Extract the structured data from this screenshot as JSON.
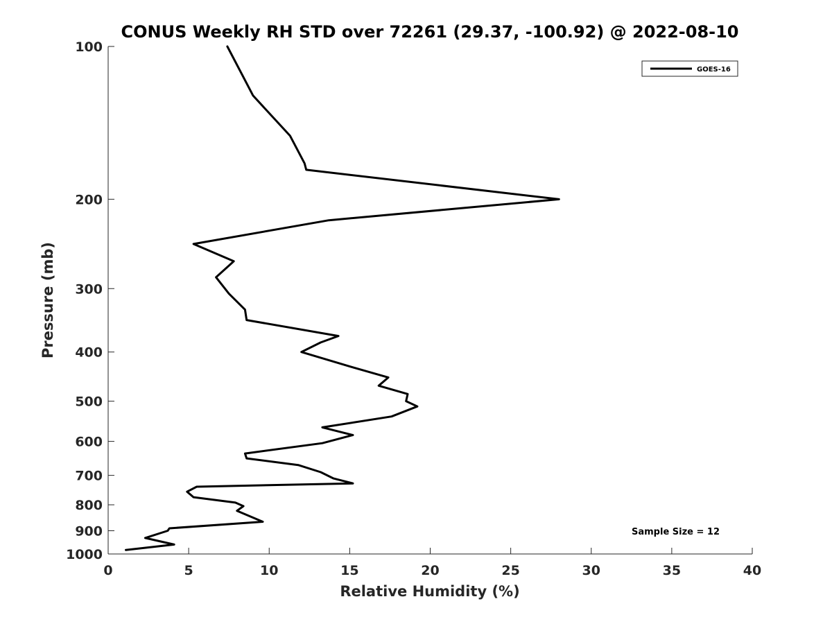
{
  "chart_data": {
    "type": "line",
    "title": "CONUS Weekly RH STD over 72261 (29.37, -100.92) @ 2022-08-10",
    "xlabel": "Relative Humidity (%)",
    "ylabel": "Pressure (mb)",
    "xlim": [
      0,
      40
    ],
    "ylim": [
      100,
      1000
    ],
    "y_scale": "log",
    "y_reversed": true,
    "x_ticks": [
      "0",
      "5",
      "10",
      "15",
      "20",
      "25",
      "30",
      "35",
      "40"
    ],
    "y_ticks": [
      "100",
      "200",
      "300",
      "400",
      "500",
      "600",
      "700",
      "800",
      "900",
      "1000"
    ],
    "grid": false,
    "legend_position": "top-right",
    "line_color": "#000000",
    "annotation": "Sample Size = 12",
    "series": [
      {
        "name": "GOES-16",
        "points": [
          [
            7.4,
            100
          ],
          [
            9.0,
            125
          ],
          [
            11.3,
            150
          ],
          [
            12.2,
            170
          ],
          [
            12.3,
            175
          ],
          [
            28.0,
            200
          ],
          [
            13.7,
            220
          ],
          [
            5.3,
            245
          ],
          [
            7.8,
            265
          ],
          [
            6.7,
            285
          ],
          [
            7.5,
            307
          ],
          [
            8.5,
            330
          ],
          [
            8.6,
            346
          ],
          [
            14.3,
            372
          ],
          [
            13.2,
            383
          ],
          [
            12.0,
            400
          ],
          [
            15.1,
            428
          ],
          [
            17.4,
            449
          ],
          [
            16.8,
            466
          ],
          [
            18.6,
            484
          ],
          [
            18.5,
            500
          ],
          [
            19.2,
            512
          ],
          [
            17.6,
            536
          ],
          [
            13.3,
            563
          ],
          [
            15.2,
            583
          ],
          [
            13.3,
            605
          ],
          [
            8.5,
            634
          ],
          [
            8.6,
            648
          ],
          [
            11.8,
            668
          ],
          [
            13.2,
            690
          ],
          [
            14.0,
            710
          ],
          [
            15.2,
            726
          ],
          [
            5.5,
            737
          ],
          [
            4.9,
            754
          ],
          [
            5.3,
            773
          ],
          [
            7.9,
            792
          ],
          [
            8.4,
            805
          ],
          [
            8.0,
            822
          ],
          [
            9.6,
            864
          ],
          [
            3.8,
            890
          ],
          [
            3.7,
            900
          ],
          [
            2.3,
            930
          ],
          [
            4.1,
            958
          ],
          [
            1.1,
            982
          ]
        ]
      }
    ]
  }
}
